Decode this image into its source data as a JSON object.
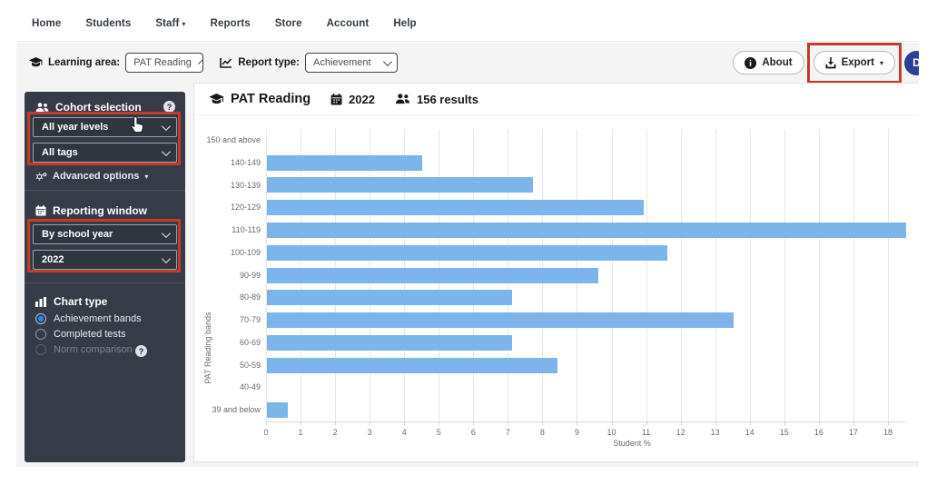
{
  "nav": {
    "items": [
      {
        "label": "Home"
      },
      {
        "label": "Students"
      },
      {
        "label": "Staff",
        "has_caret": true
      },
      {
        "label": "Reports"
      },
      {
        "label": "Store"
      },
      {
        "label": "Account"
      },
      {
        "label": "Help"
      }
    ]
  },
  "filter_bar": {
    "learning_area_label": "Learning area:",
    "learning_area_value": "PAT Reading",
    "report_type_label": "Report type:",
    "report_type_value": "Achievement",
    "about_label": "About",
    "export_label": "Export",
    "profile_initial": "D"
  },
  "sidebar": {
    "cohort_title": "Cohort selection",
    "year_levels_value": "All year levels",
    "tags_value": "All tags",
    "advanced_options_label": "Advanced options",
    "reporting_window_title": "Reporting window",
    "window_mode_value": "By school year",
    "window_year_value": "2022",
    "chart_type_title": "Chart type",
    "chart_type_options": [
      {
        "label": "Achievement bands",
        "selected": true,
        "disabled": false
      },
      {
        "label": "Completed tests",
        "selected": false,
        "disabled": false
      },
      {
        "label": "Norm comparison",
        "selected": false,
        "disabled": true,
        "has_help": true
      }
    ]
  },
  "report_header": {
    "title": "PAT Reading",
    "year": "2022",
    "results": "156 results"
  },
  "chart_data": {
    "type": "bar",
    "orientation": "horizontal",
    "title": "",
    "xlabel": "Student %",
    "ylabel": "PAT Reading bands",
    "categories": [
      "150 and above",
      "140-149",
      "130-139",
      "120-129",
      "110-119",
      "100-109",
      "90-99",
      "80-89",
      "70-79",
      "60-69",
      "50-59",
      "40-49",
      "39 and below"
    ],
    "values": [
      0,
      4.5,
      7.7,
      10.9,
      18.6,
      11.6,
      9.6,
      7.1,
      13.5,
      7.1,
      8.4,
      0,
      0.6
    ],
    "xlim": [
      0,
      18.5
    ],
    "xticks": [
      0,
      1,
      2,
      3,
      4,
      5,
      6,
      7,
      8,
      9,
      10,
      11,
      12,
      13,
      14,
      15,
      16,
      17,
      18
    ],
    "grid": true,
    "legend": "none",
    "bar_color": "#7cb5ec"
  },
  "colors": {
    "bar": "#7cb5ec",
    "sidebar_bg": "#353c47",
    "annotation_red": "#c23b2d",
    "profile_blue": "#2c3f93",
    "radio_accent": "#2f86f6"
  }
}
